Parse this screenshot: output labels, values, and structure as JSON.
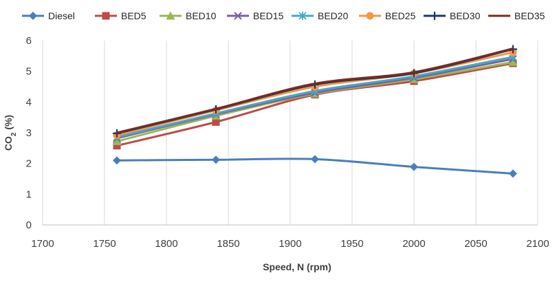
{
  "chart_data": {
    "type": "line",
    "xlabel": "Speed, N (rpm)",
    "ylabel": "CO",
    "ylabel_subscript": "2",
    "ylabel_suffix": " (%)",
    "xlim": [
      1700,
      2100
    ],
    "ylim": [
      0,
      6
    ],
    "xticks": [
      1700,
      1750,
      1800,
      1850,
      1900,
      1950,
      2000,
      2050,
      2100
    ],
    "yticks": [
      0,
      1,
      2,
      3,
      4,
      5,
      6
    ],
    "grid": "vertical",
    "legend_position": "top",
    "x": [
      1760,
      1840,
      1920,
      2000,
      2080
    ],
    "series": [
      {
        "name": "Diesel",
        "color": "#4a7ebb",
        "marker": "diamond",
        "values": [
          2.1,
          2.12,
          2.14,
          1.89,
          1.67
        ]
      },
      {
        "name": "BED5",
        "color": "#be4b48",
        "marker": "square",
        "values": [
          2.58,
          3.35,
          4.24,
          4.68,
          5.26
        ]
      },
      {
        "name": "BED10",
        "color": "#98b954",
        "marker": "triangle",
        "values": [
          2.72,
          3.55,
          4.27,
          4.74,
          5.3
        ]
      },
      {
        "name": "BED15",
        "color": "#7d60a0",
        "marker": "x",
        "values": [
          2.82,
          3.6,
          4.3,
          4.79,
          5.4
        ]
      },
      {
        "name": "BED20",
        "color": "#46aac5",
        "marker": "asterisk",
        "values": [
          2.86,
          3.63,
          4.36,
          4.84,
          5.47
        ]
      },
      {
        "name": "BED25",
        "color": "#f79646",
        "marker": "circle",
        "values": [
          2.92,
          3.73,
          4.5,
          4.93,
          5.62
        ]
      },
      {
        "name": "BED30",
        "color": "#1f3864",
        "marker": "plus",
        "values": [
          2.98,
          3.76,
          4.57,
          4.94,
          5.72
        ]
      },
      {
        "name": "BED35",
        "color": "#7a2b22",
        "marker": "none",
        "values": [
          3.0,
          3.78,
          4.6,
          4.97,
          5.74
        ]
      }
    ]
  }
}
